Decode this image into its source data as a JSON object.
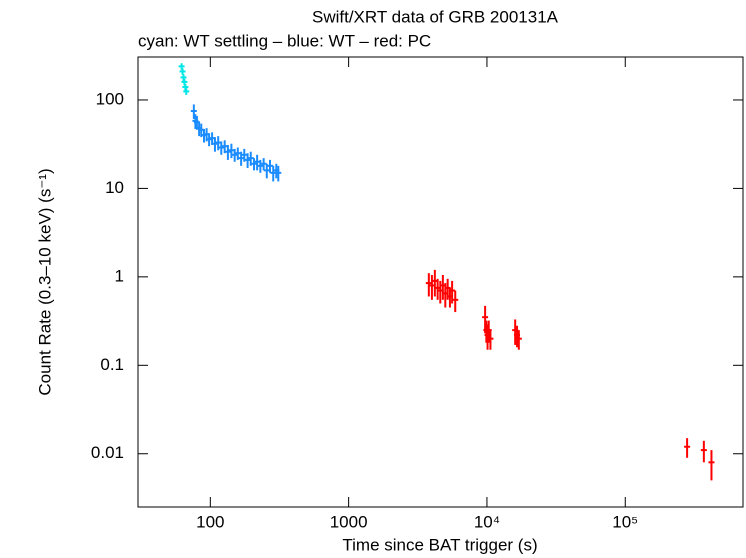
{
  "chart_data": {
    "type": "scatter",
    "title": "Swift/XRT data of GRB 200131A",
    "subtitle": "cyan: WT settling – blue: WT – red: PC",
    "x_label": "Time since BAT trigger (s)",
    "y_label": "Count Rate (0.3–10 keV) (s⁻¹)",
    "xlog": true,
    "ylog": true,
    "xlim": [
      30,
      710000
    ],
    "ylim": [
      0.0025,
      306
    ],
    "xticks": [
      100,
      1000,
      {
        "value": 10000,
        "label": "10⁴"
      },
      {
        "value": 100000,
        "label": "10⁵"
      }
    ],
    "yticks": [
      100,
      10,
      1,
      0.1,
      0.01
    ],
    "series": [
      {
        "color": "#00e5e5",
        "x": [
          62,
          63,
          64,
          65,
          66,
          67
        ],
        "values": [
          240,
          210,
          180,
          160,
          140,
          125
        ],
        "errors": [
          20,
          18,
          16,
          14,
          12,
          11
        ]
      },
      {
        "color": "#1a8cff",
        "x": [
          76,
          78,
          80,
          83,
          86,
          90,
          94,
          98,
          103,
          108,
          114,
          120,
          127,
          134,
          142,
          150,
          158,
          167,
          176,
          186,
          196,
          207,
          218,
          230,
          243,
          256,
          270,
          285,
          300,
          310
        ],
        "values": [
          75,
          58,
          56,
          48,
          46,
          40,
          41,
          36,
          37,
          32,
          33,
          29,
          30,
          26,
          27,
          24,
          25,
          22,
          24,
          21,
          22,
          19,
          20,
          18,
          19,
          16,
          18,
          15,
          16,
          15
        ],
        "errors": [
          14,
          11,
          10,
          9,
          8,
          7,
          7,
          6,
          6,
          6,
          6,
          5,
          5,
          5,
          5,
          4,
          4,
          4,
          4,
          4,
          4,
          3,
          4,
          3,
          3,
          3,
          3,
          3,
          3,
          3
        ]
      },
      {
        "color": "#ff0000",
        "x": [
          3800,
          4000,
          4200,
          4400,
          4600,
          4800,
          5000,
          5200,
          5400,
          5600,
          5900,
          9700,
          9900,
          10100,
          10300,
          10600,
          16000,
          16500,
          17000,
          280000,
          370000,
          420000
        ],
        "values": [
          0.85,
          0.8,
          0.9,
          0.75,
          0.7,
          0.8,
          0.65,
          0.75,
          0.6,
          0.7,
          0.55,
          0.35,
          0.25,
          0.22,
          0.25,
          0.2,
          0.25,
          0.22,
          0.2,
          0.012,
          0.011,
          0.008
        ],
        "errors": [
          0.25,
          0.25,
          0.3,
          0.2,
          0.2,
          0.25,
          0.2,
          0.2,
          0.15,
          0.2,
          0.15,
          0.12,
          0.07,
          0.07,
          0.07,
          0.05,
          0.08,
          0.06,
          0.05,
          0.003,
          0.003,
          0.003
        ]
      }
    ]
  }
}
